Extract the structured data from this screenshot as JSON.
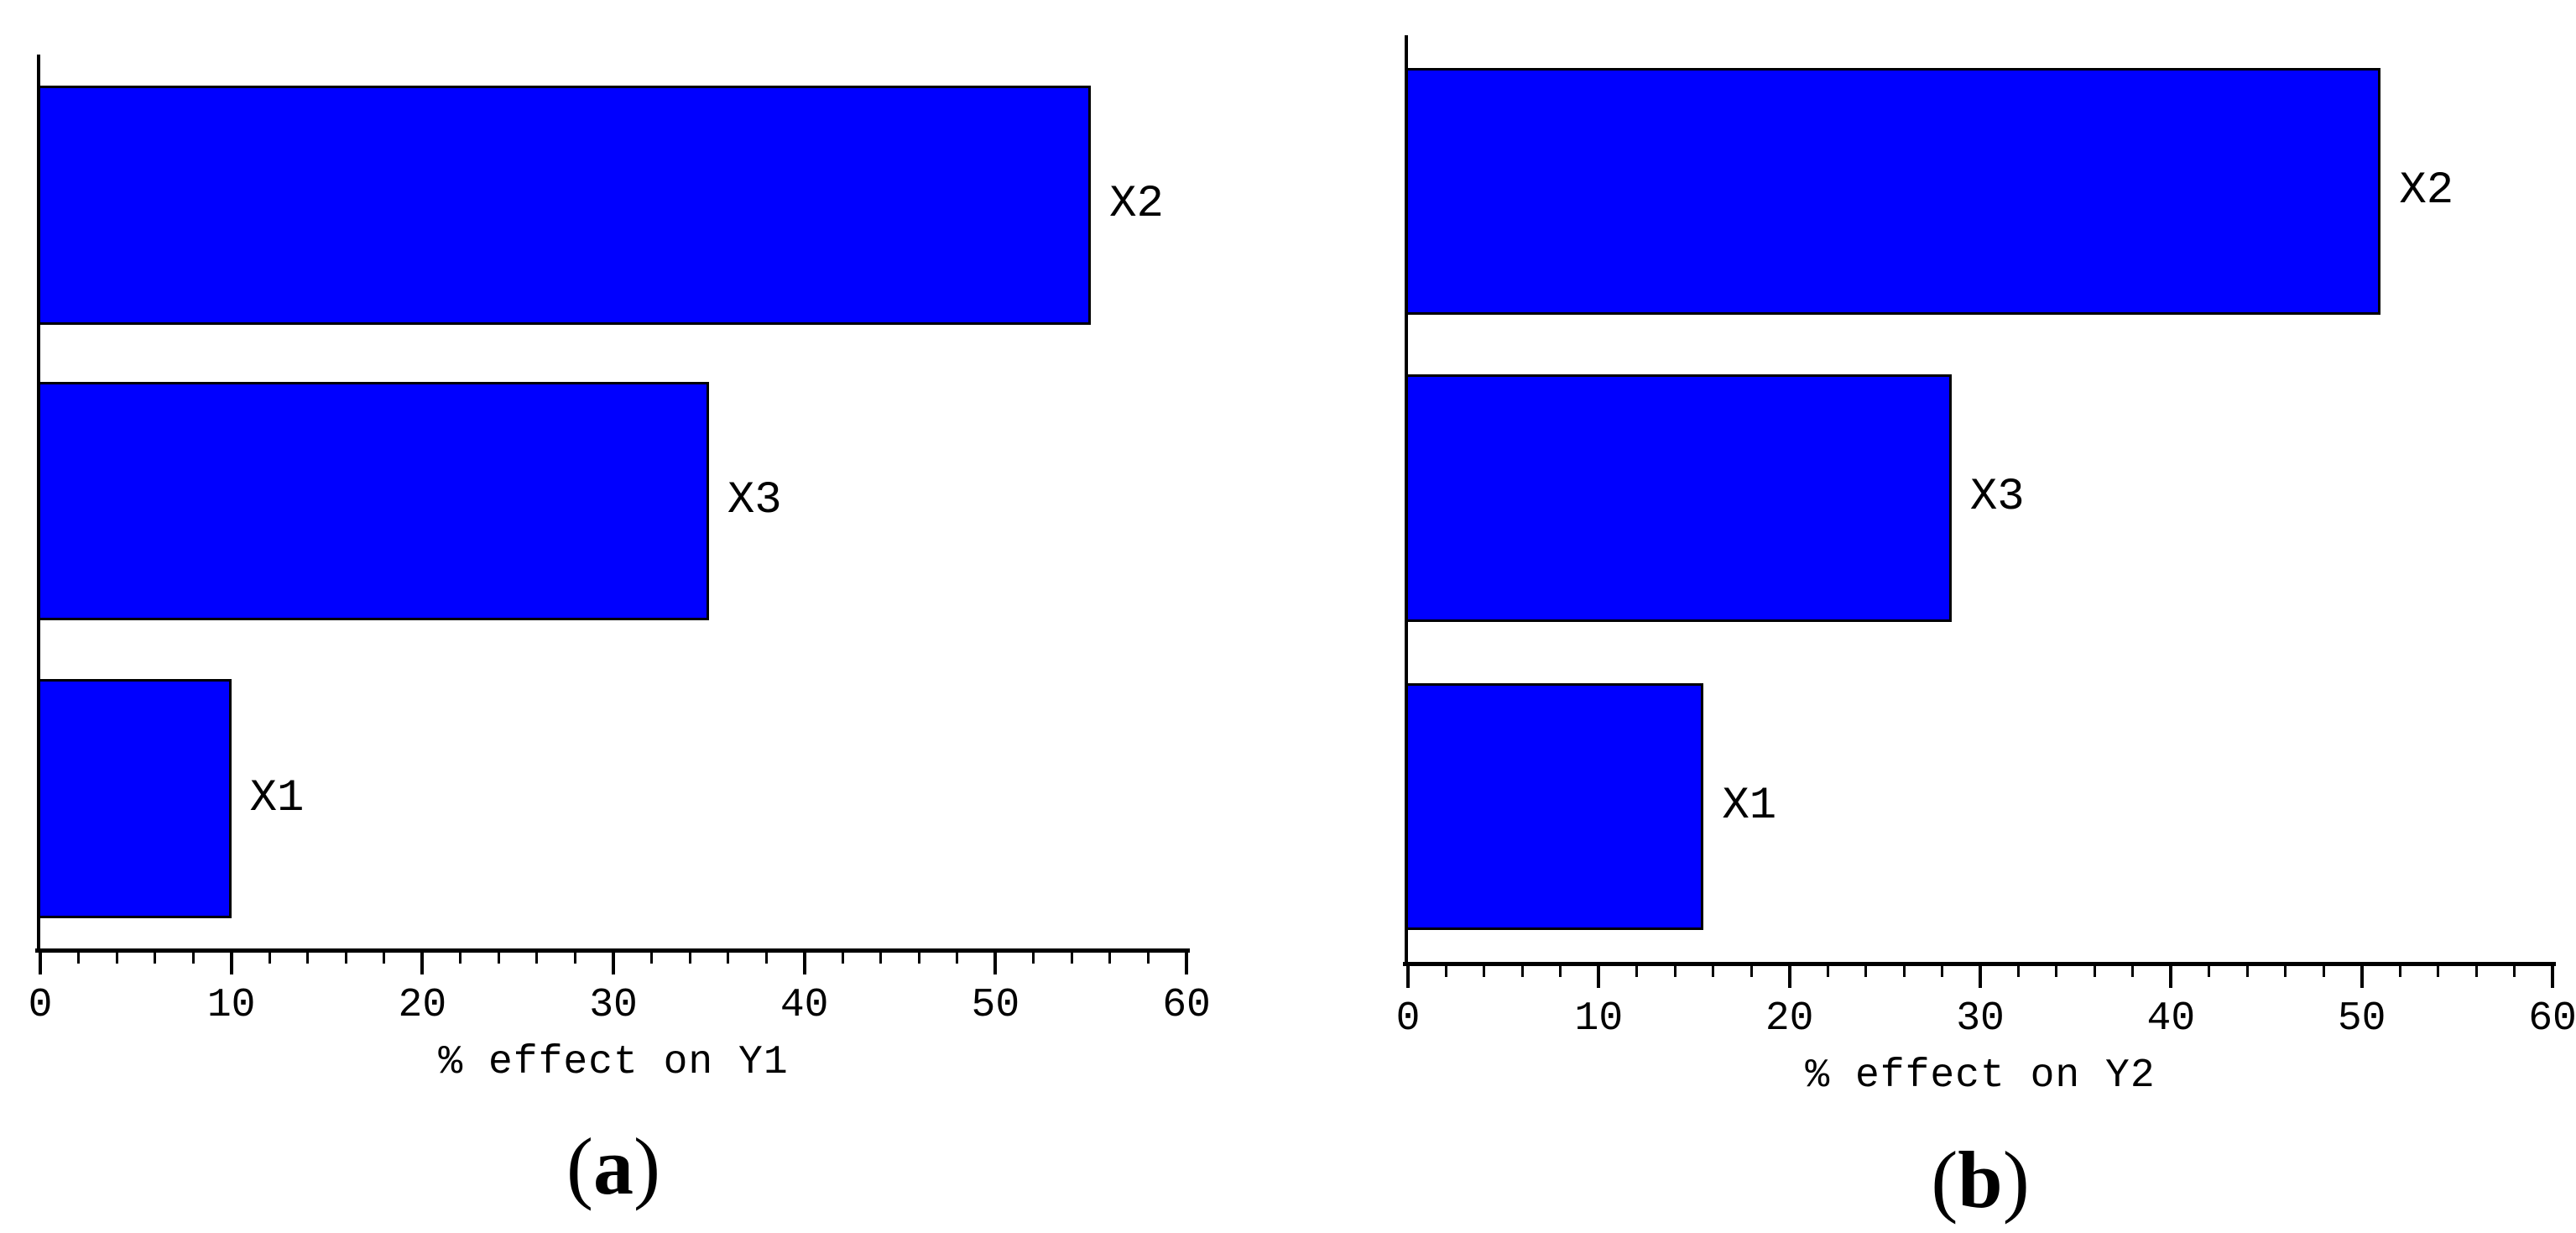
{
  "chart_data": [
    {
      "type": "bar",
      "orientation": "horizontal",
      "title": "",
      "xlabel": "% effect on Y1",
      "ylabel": "",
      "xlim": [
        0,
        60
      ],
      "xticks": [
        0,
        10,
        20,
        30,
        40,
        50,
        60
      ],
      "minor_tick_step": 2,
      "categories": [
        "X2",
        "X3",
        "X1"
      ],
      "values": [
        55,
        35,
        10
      ],
      "bar_color": "#0000ff",
      "grid": false,
      "legend": false,
      "caption": {
        "open": "(",
        "letter": "a",
        "close": ")"
      }
    },
    {
      "type": "bar",
      "orientation": "horizontal",
      "title": "",
      "xlabel": "% effect on Y2",
      "ylabel": "",
      "xlim": [
        0,
        60
      ],
      "xticks": [
        0,
        10,
        20,
        30,
        40,
        50,
        60
      ],
      "minor_tick_step": 2,
      "categories": [
        "X2",
        "X3",
        "X1"
      ],
      "values": [
        51,
        28.5,
        15.5
      ],
      "bar_color": "#0000ff",
      "grid": false,
      "legend": false,
      "caption": {
        "open": "(",
        "letter": "b",
        "close": ")"
      }
    }
  ]
}
